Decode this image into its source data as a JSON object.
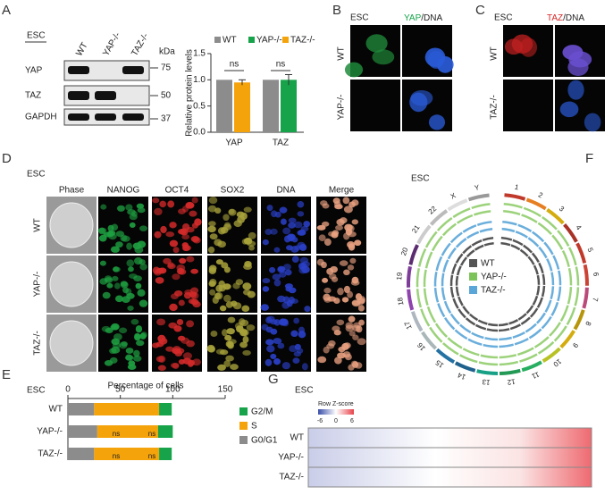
{
  "panel_letters": [
    "A",
    "B",
    "C",
    "D",
    "E",
    "F",
    "G"
  ],
  "blot": {
    "label": "ESC",
    "lanes": [
      "WT",
      "YAP-/-",
      "TAZ-/-"
    ],
    "unit": "kDa",
    "rows": [
      "YAP",
      "TAZ",
      "GAPDH"
    ],
    "markers": [
      "75",
      "50",
      "37"
    ]
  },
  "chart_data": [
    {
      "type": "bar",
      "ylabel": "Relative protein levels",
      "categories": [
        "YAP",
        "TAZ"
      ],
      "series": [
        {
          "name": "WT",
          "color": "#8c8c8c",
          "values": [
            1,
            1
          ],
          "errors": [
            0,
            0
          ]
        },
        {
          "name": "YAP-/-",
          "color": "#16a34a",
          "values": [
            null,
            1.0
          ],
          "errors": [
            null,
            0.1
          ]
        },
        {
          "name": "TAZ-/-",
          "color": "#f5a30a",
          "values": [
            0.95,
            null
          ],
          "errors": [
            0.05,
            null
          ]
        }
      ],
      "ylim": [
        0,
        1.5
      ],
      "yticks": [
        {
          "value": 0,
          "label": "0.0"
        },
        0.5,
        {
          "value": 1,
          "label": "1.0"
        },
        1.5
      ],
      "annotations": [
        "ns",
        "ns"
      ]
    },
    {
      "type": "stacked-barh",
      "label": "ESC",
      "title": "Percentage of cells",
      "categories": [
        "WT",
        "YAP-/-",
        "TAZ-/-"
      ],
      "series": [
        {
          "name": "G0/G1",
          "color": "#8c8c8c",
          "values": [
            25,
            28,
            25
          ]
        },
        {
          "name": "S",
          "color": "#f5a30a",
          "values": [
            62,
            58,
            62
          ]
        },
        {
          "name": "G2/M",
          "color": "#16a34a",
          "values": [
            12,
            14,
            12
          ]
        }
      ],
      "xlim": [
        0,
        150
      ],
      "xticks": [
        0,
        50,
        100,
        150
      ],
      "annotations": [
        "ns",
        "ns",
        "ns",
        "ns"
      ]
    }
  ],
  "panel_b": {
    "label": "ESC",
    "title_a": "YAP",
    "title_sep": "/DNA",
    "rows": [
      "WT",
      "YAP-/-"
    ]
  },
  "panel_c": {
    "label": "ESC",
    "title_a": "TAZ",
    "title_sep": "/DNA",
    "rows": [
      "WT",
      "TAZ-/-"
    ]
  },
  "panel_d": {
    "label": "ESC",
    "columns": [
      "Phase",
      "NANOG",
      "OCT4",
      "SOX2",
      "DNA",
      "Merge"
    ],
    "rows": [
      "WT",
      "YAP-/-",
      "TAZ-/-"
    ]
  },
  "panel_f": {
    "label": "ESC",
    "chromosomes": [
      "1",
      "2",
      "3",
      "4",
      "5",
      "6",
      "7",
      "8",
      "9",
      "10",
      "11",
      "12",
      "13",
      "14",
      "15",
      "16",
      "17",
      "18",
      "19",
      "20",
      "21",
      "22",
      "X",
      "Y"
    ],
    "legend": [
      "WT",
      "YAP-/-",
      "TAZ-/-"
    ]
  },
  "panel_g": {
    "label": "ESC",
    "scale_title": "Row Z-score",
    "scale_ticks": [
      "-6",
      "0",
      "6"
    ],
    "rows": [
      "WT",
      "YAP-/-",
      "TAZ-/-"
    ]
  }
}
